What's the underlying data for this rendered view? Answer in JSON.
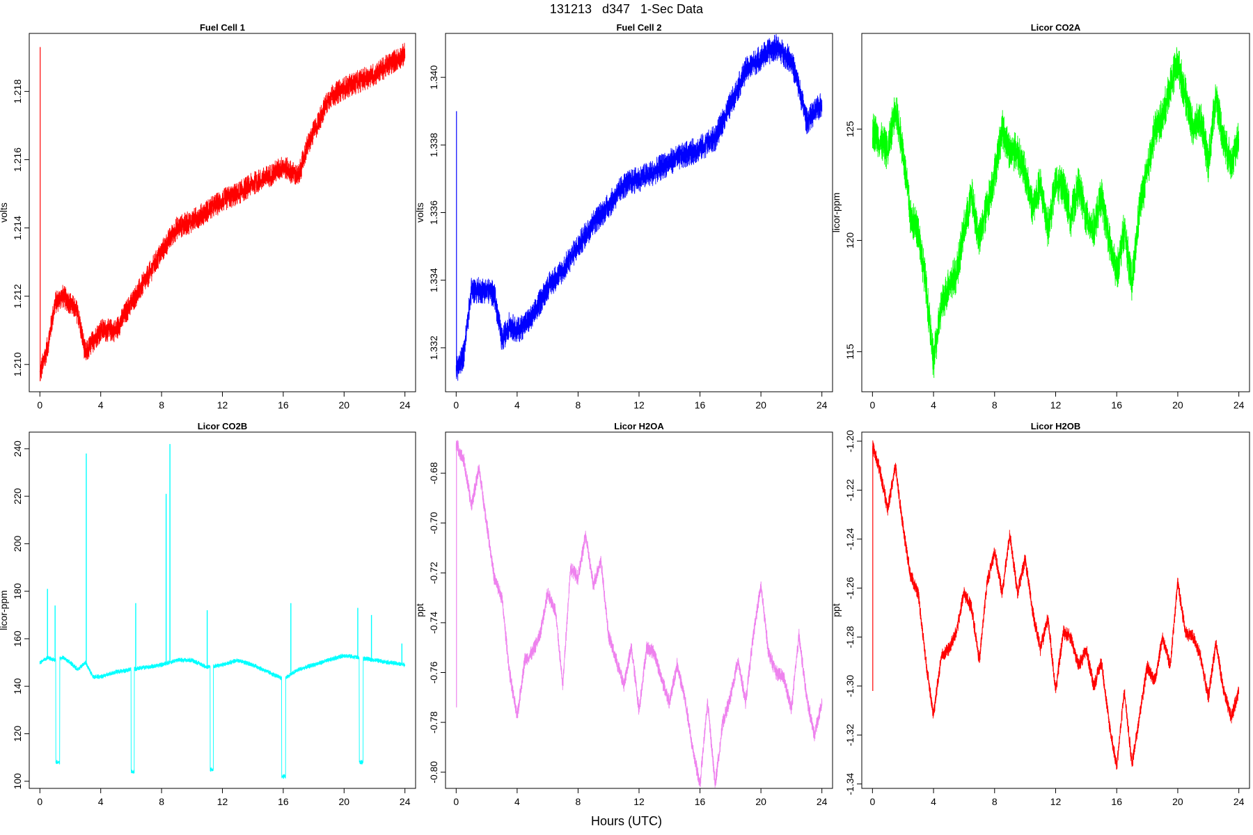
{
  "figure": {
    "title": "131213   d347   1-Sec Data",
    "xlabel": "Hours (UTC)"
  },
  "chart_data": [
    {
      "type": "line",
      "title": "Fuel Cell 1",
      "ylabel": "volts",
      "color": "#ff0000",
      "xlim": [
        -0.7,
        24.7
      ],
      "ylim": [
        1.2092,
        1.2197
      ],
      "x_ticks": [
        0,
        4,
        8,
        12,
        16,
        20,
        24
      ],
      "y_ticks": [
        1.21,
        1.212,
        1.214,
        1.216,
        1.218
      ],
      "y_tick_labels": [
        "1.210",
        "1.212",
        "1.214",
        "1.216",
        "1.218"
      ],
      "spike": {
        "x": 0.02,
        "y_low": 1.2097,
        "y_high": 1.2193
      },
      "x": [
        0,
        0.5,
        1,
        1.5,
        2,
        2.5,
        3,
        3.5,
        4,
        5,
        6,
        7,
        8,
        9,
        10,
        11,
        12,
        13,
        14,
        15,
        16,
        17,
        17.5,
        18,
        19,
        20,
        21,
        22,
        23,
        24
      ],
      "values": [
        1.2097,
        1.2105,
        1.2118,
        1.212,
        1.2118,
        1.2115,
        1.2103,
        1.2107,
        1.211,
        1.211,
        1.2118,
        1.2125,
        1.2133,
        1.214,
        1.2142,
        1.2145,
        1.2148,
        1.215,
        1.2153,
        1.2155,
        1.2158,
        1.2155,
        1.2163,
        1.2168,
        1.2178,
        1.2181,
        1.2183,
        1.2185,
        1.2188,
        1.2191
      ],
      "noise": 0.00035
    },
    {
      "type": "line",
      "title": "Fuel Cell 2",
      "ylabel": "volts",
      "color": "#0000ff",
      "xlim": [
        -0.7,
        24.7
      ],
      "ylim": [
        1.3307,
        1.3413
      ],
      "x_ticks": [
        0,
        4,
        8,
        12,
        16,
        20,
        24
      ],
      "y_ticks": [
        1.332,
        1.334,
        1.336,
        1.338,
        1.34
      ],
      "y_tick_labels": [
        "1.332",
        "1.334",
        "1.336",
        "1.338",
        "1.340"
      ],
      "spike": {
        "x": 0.02,
        "y_low": 1.3313,
        "y_high": 1.339
      },
      "x": [
        0,
        0.5,
        1,
        2,
        2.5,
        3,
        3.5,
        4,
        5,
        6,
        7,
        8,
        9,
        10,
        11,
        12,
        13,
        14,
        15,
        16,
        17,
        18,
        19,
        20,
        21,
        22,
        22.5,
        23,
        24
      ],
      "values": [
        1.3313,
        1.3318,
        1.3337,
        1.3337,
        1.3336,
        1.3322,
        1.3327,
        1.3325,
        1.3329,
        1.3338,
        1.3343,
        1.335,
        1.3357,
        1.3362,
        1.3368,
        1.337,
        1.3372,
        1.3375,
        1.3377,
        1.3379,
        1.3382,
        1.3392,
        1.3402,
        1.3406,
        1.3409,
        1.3405,
        1.3397,
        1.3387,
        1.3392
      ],
      "noise": 0.0004
    },
    {
      "type": "line",
      "title": "Licor CO2A",
      "ylabel": "licor-ppm",
      "color": "#00ff00",
      "xlim": [
        -0.7,
        24.7
      ],
      "ylim": [
        113.2,
        129.3
      ],
      "x_ticks": [
        0,
        4,
        8,
        12,
        16,
        20,
        24
      ],
      "y_ticks": [
        115,
        120,
        125
      ],
      "y_tick_labels": [
        "115",
        "120",
        "125"
      ],
      "x": [
        0,
        0.5,
        1,
        1.5,
        2,
        2.5,
        3,
        3.5,
        4,
        4.5,
        5,
        5.5,
        6,
        6.5,
        7,
        7.5,
        8,
        8.5,
        9,
        9.5,
        10,
        10.5,
        11,
        11.5,
        12,
        12.5,
        13,
        13.5,
        14,
        14.5,
        15,
        15.5,
        16,
        16.5,
        17,
        17.5,
        18,
        18.5,
        19,
        19.5,
        20,
        20.5,
        21,
        21.5,
        22,
        22.5,
        23,
        23.5,
        24
      ],
      "values": [
        125.0,
        124.5,
        124.0,
        126.0,
        124.0,
        121.0,
        120.5,
        118.0,
        114.5,
        117.0,
        118.0,
        118.5,
        120.5,
        122.0,
        120.0,
        121.5,
        123.0,
        125.0,
        124.0,
        124.0,
        123.0,
        121.5,
        122.5,
        120.5,
        122.5,
        122.5,
        121.0,
        122.5,
        121.0,
        120.5,
        122.0,
        120.0,
        118.5,
        120.5,
        118.0,
        121.5,
        123.0,
        125.0,
        125.5,
        127.0,
        128.0,
        126.5,
        125.0,
        125.5,
        123.5,
        126.5,
        124.5,
        123.5,
        124.5
      ],
      "noise": 0.9
    },
    {
      "type": "line",
      "title": "Licor CO2B",
      "ylabel": "licor-ppm",
      "color": "#00ffff",
      "xlim": [
        -0.7,
        24.7
      ],
      "ylim": [
        97,
        247
      ],
      "x_ticks": [
        0,
        4,
        8,
        12,
        16,
        20,
        24
      ],
      "y_ticks": [
        100,
        120,
        140,
        160,
        180,
        200,
        220,
        240
      ],
      "y_tick_labels": [
        "100",
        "120",
        "140",
        "160",
        "180",
        "200",
        "220",
        "240"
      ],
      "x": [
        0,
        0.5,
        1,
        1.5,
        2,
        2.5,
        3,
        3.5,
        4,
        5,
        6,
        7,
        8,
        9,
        10,
        11,
        12,
        13,
        14,
        15,
        16,
        17,
        18,
        19,
        20,
        21,
        22,
        23,
        24
      ],
      "values": [
        150,
        152,
        151,
        152,
        150,
        147,
        150,
        144,
        144,
        146,
        147,
        148,
        149,
        151,
        151,
        148,
        149,
        151,
        149,
        146,
        143,
        147,
        149,
        151,
        153,
        152,
        151,
        150,
        149
      ],
      "noise": 1.0,
      "dips": [
        {
          "x0": 1.05,
          "x1": 1.3,
          "y": 108
        },
        {
          "x0": 6.0,
          "x1": 6.2,
          "y": 104
        },
        {
          "x0": 11.2,
          "x1": 11.4,
          "y": 105
        },
        {
          "x0": 15.9,
          "x1": 16.15,
          "y": 102
        },
        {
          "x0": 21.0,
          "x1": 21.25,
          "y": 108
        }
      ],
      "spikes": [
        {
          "x": 0.5,
          "y": 181
        },
        {
          "x": 1.0,
          "y": 174
        },
        {
          "x": 3.05,
          "y": 238
        },
        {
          "x": 6.3,
          "y": 175
        },
        {
          "x": 8.3,
          "y": 221
        },
        {
          "x": 8.55,
          "y": 242
        },
        {
          "x": 11.0,
          "y": 172
        },
        {
          "x": 16.5,
          "y": 175
        },
        {
          "x": 20.9,
          "y": 173
        },
        {
          "x": 21.8,
          "y": 170
        },
        {
          "x": 23.8,
          "y": 158
        }
      ]
    },
    {
      "type": "line",
      "title": "Licor H2OA",
      "ylabel": "ppt",
      "color": "#ee82ee",
      "xlim": [
        -0.7,
        24.7
      ],
      "ylim": [
        -0.8065,
        -0.6635
      ],
      "x_ticks": [
        0,
        4,
        8,
        12,
        16,
        20,
        24
      ],
      "y_ticks": [
        -0.68,
        -0.7,
        -0.72,
        -0.74,
        -0.76,
        -0.78,
        -0.8
      ],
      "y_tick_labels": [
        "-0.68",
        "-0.70",
        "-0.72",
        "-0.74",
        "-0.76",
        "-0.78",
        "-0.80"
      ],
      "spike": {
        "x": 0.02,
        "y_low": -0.774,
        "y_high": -0.668
      },
      "x": [
        0,
        0.5,
        1,
        1.5,
        2,
        2.5,
        3,
        3.5,
        4,
        4.5,
        5,
        5.5,
        6,
        6.5,
        7,
        7.5,
        8,
        8.5,
        9,
        9.5,
        10,
        10.5,
        11,
        11.5,
        12,
        12.5,
        13,
        13.5,
        14,
        14.5,
        15,
        15.5,
        16,
        16.5,
        17,
        17.5,
        18,
        18.5,
        19,
        19.5,
        20,
        20.5,
        21,
        21.5,
        22,
        22.5,
        23,
        23.5,
        24
      ],
      "values": [
        -0.668,
        -0.675,
        -0.693,
        -0.678,
        -0.7,
        -0.722,
        -0.73,
        -0.76,
        -0.778,
        -0.755,
        -0.752,
        -0.745,
        -0.728,
        -0.735,
        -0.765,
        -0.718,
        -0.722,
        -0.705,
        -0.725,
        -0.715,
        -0.745,
        -0.755,
        -0.765,
        -0.75,
        -0.775,
        -0.75,
        -0.752,
        -0.763,
        -0.772,
        -0.757,
        -0.77,
        -0.79,
        -0.805,
        -0.772,
        -0.805,
        -0.78,
        -0.77,
        -0.755,
        -0.772,
        -0.745,
        -0.725,
        -0.752,
        -0.76,
        -0.762,
        -0.775,
        -0.745,
        -0.77,
        -0.785,
        -0.772
      ],
      "noise": 0.003
    },
    {
      "type": "line",
      "title": "Licor H2OB",
      "ylabel": "ppt",
      "color": "#ff0000",
      "xlim": [
        -0.7,
        24.7
      ],
      "ylim": [
        -1.3418,
        -1.1963
      ],
      "x_ticks": [
        0,
        4,
        8,
        12,
        16,
        20,
        24
      ],
      "y_ticks": [
        -1.2,
        -1.22,
        -1.24,
        -1.26,
        -1.28,
        -1.3,
        -1.32,
        -1.34
      ],
      "y_tick_labels": [
        "-1.20",
        "-1.22",
        "-1.24",
        "-1.26",
        "-1.28",
        "-1.30",
        "-1.32",
        "-1.34"
      ],
      "spike": {
        "x": 0.02,
        "y_low": -1.302,
        "y_high": -1.202
      },
      "x": [
        0,
        0.5,
        1,
        1.5,
        2,
        2.5,
        3,
        3.5,
        4,
        4.5,
        5,
        5.5,
        6,
        6.5,
        7,
        7.5,
        8,
        8.5,
        9,
        9.5,
        10,
        10.5,
        11,
        11.5,
        12,
        12.5,
        13,
        13.5,
        14,
        14.5,
        15,
        15.5,
        16,
        16.5,
        17,
        17.5,
        18,
        18.5,
        19,
        19.5,
        20,
        20.5,
        21,
        21.5,
        22,
        22.5,
        23,
        23.5,
        24
      ],
      "values": [
        -1.202,
        -1.212,
        -1.228,
        -1.21,
        -1.235,
        -1.255,
        -1.262,
        -1.29,
        -1.312,
        -1.288,
        -1.285,
        -1.278,
        -1.262,
        -1.268,
        -1.29,
        -1.258,
        -1.245,
        -1.262,
        -1.238,
        -1.262,
        -1.248,
        -1.27,
        -1.285,
        -1.272,
        -1.302,
        -1.278,
        -1.28,
        -1.292,
        -1.285,
        -1.3,
        -1.29,
        -1.315,
        -1.333,
        -1.302,
        -1.332,
        -1.312,
        -1.292,
        -1.298,
        -1.28,
        -1.292,
        -1.258,
        -1.278,
        -1.28,
        -1.288,
        -1.305,
        -1.282,
        -1.302,
        -1.313,
        -1.302
      ],
      "noise": 0.003
    }
  ]
}
